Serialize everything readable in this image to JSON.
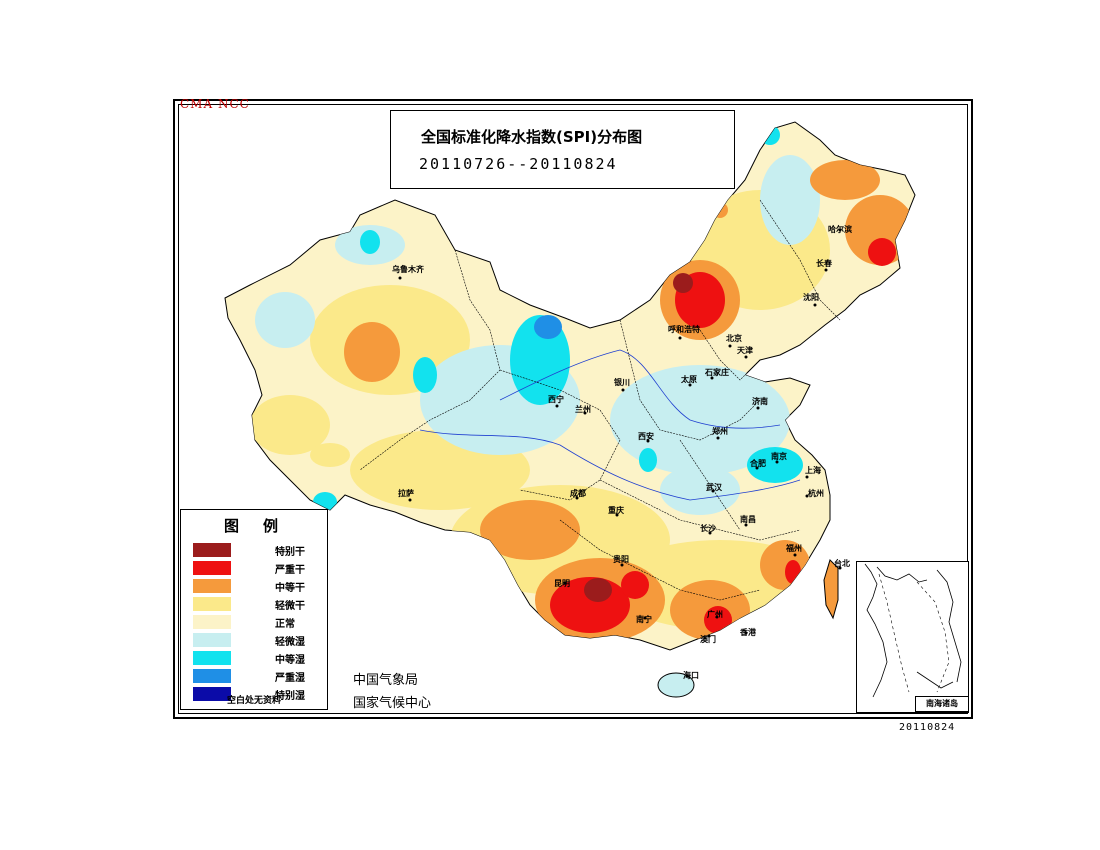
{
  "watermark": "CMA NCC",
  "title": {
    "main": "全国标准化降水指数(SPI)分布图",
    "period": "20110726--20110824"
  },
  "legend": {
    "heading": "图例",
    "items": [
      {
        "label": "特别干",
        "color": "#9b1c1c"
      },
      {
        "label": "严重干",
        "color": "#ee1111"
      },
      {
        "label": "中等干",
        "color": "#f59a3c"
      },
      {
        "label": "轻微干",
        "color": "#fbe98a"
      },
      {
        "label": "正常",
        "color": "#fcf3c8"
      },
      {
        "label": "轻微湿",
        "color": "#c7eef0"
      },
      {
        "label": "中等湿",
        "color": "#12e2ee"
      },
      {
        "label": "严重湿",
        "color": "#1f8fe6"
      },
      {
        "label": "特别湿",
        "color": "#0b0ba8"
      }
    ],
    "note": "空白处无资料"
  },
  "agency": {
    "line1": "中国气象局",
    "line2": "国家气候中心"
  },
  "inset_label": "南海诸岛",
  "date_stamp": "20110824",
  "cities": [
    {
      "name": "乌鲁木齐"
    },
    {
      "name": "哈尔滨"
    },
    {
      "name": "长春"
    },
    {
      "name": "沈阳"
    },
    {
      "name": "呼和浩特"
    },
    {
      "name": "北京"
    },
    {
      "name": "天津"
    },
    {
      "name": "石家庄"
    },
    {
      "name": "太原"
    },
    {
      "name": "银川"
    },
    {
      "name": "济南"
    },
    {
      "name": "西宁"
    },
    {
      "name": "兰州"
    },
    {
      "name": "西安"
    },
    {
      "name": "郑州"
    },
    {
      "name": "合肥"
    },
    {
      "name": "南京"
    },
    {
      "name": "上海"
    },
    {
      "name": "武汉"
    },
    {
      "name": "杭州"
    },
    {
      "name": "成都"
    },
    {
      "name": "重庆"
    },
    {
      "name": "拉萨"
    },
    {
      "name": "长沙"
    },
    {
      "name": "南昌"
    },
    {
      "name": "福州"
    },
    {
      "name": "台北"
    },
    {
      "name": "贵阳"
    },
    {
      "name": "昆明"
    },
    {
      "name": "南宁"
    },
    {
      "name": "广州"
    },
    {
      "name": "澳门"
    },
    {
      "name": "香港"
    },
    {
      "name": "海口"
    }
  ]
}
